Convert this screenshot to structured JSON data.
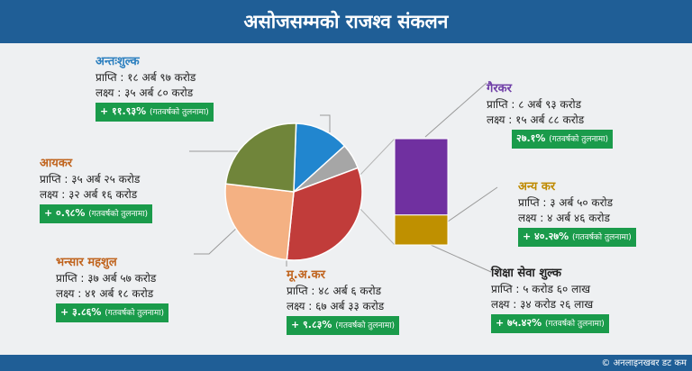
{
  "header": {
    "title": "असोजसम्मको राजश्व संकलन"
  },
  "footer": {
    "copyright": "© अनलाइनखबर डट कम"
  },
  "chart_data": {
    "type": "pie",
    "slices": [
      {
        "name": "अन्तःशुल्क",
        "value": 18.97,
        "color": "#2186cf"
      },
      {
        "name": "गैरकर",
        "value": 8.93,
        "color": "#a6a6a6"
      },
      {
        "name": "मू.अ.कर",
        "value": 48.06,
        "color": "#c13c3a"
      },
      {
        "name": "भन्सार महशुल",
        "value": 37.57,
        "color": "#f4b183"
      },
      {
        "name": "आयकर",
        "value": 35.25,
        "color": "#70853a"
      }
    ],
    "breakout": [
      {
        "name": "गैरकर",
        "value": 8.93,
        "color": "#7030a0"
      },
      {
        "name": "अन्य कर",
        "value": 3.5,
        "color": "#bf9000"
      }
    ]
  },
  "blocks": {
    "excise": {
      "title": "अन्तःशुल्क",
      "achievement": "प्राप्ति : १८ अर्ब ९७ करोड",
      "target": "लक्ष्य : ३५ अर्ब ८० करोड",
      "growth": "+ ११.९३%",
      "note": "(गतवर्षको तुलनामा)"
    },
    "income_tax": {
      "title": "आयकर",
      "achievement": "प्राप्ति : ३५ अर्ब २५ करोड",
      "target": "लक्ष्य : ३२ अर्ब १६ करोड",
      "growth": "+ ०.९८%",
      "note": "(गतवर्षको तुलनामा)"
    },
    "customs": {
      "title": "भन्सार महशुल",
      "achievement": "प्राप्ति : ३७ अर्ब ५७ करोड",
      "target": "लक्ष्य : ४१ अर्ब १८ करोड",
      "growth": "+ ३.८६%",
      "note": "(गतवर्षको तुलनामा)"
    },
    "vat": {
      "title": "मू.अ.कर",
      "achievement": "प्राप्ति : ४८ अर्ब ६ करोड",
      "target": "लक्ष्य : ६७ अर्ब ३३ करोड",
      "growth": "+ ९.८३%",
      "note": "(गतवर्षको तुलनामा)"
    },
    "non_tax": {
      "title": "गैरकर",
      "achievement": "प्राप्ति : ८ अर्ब ९३ करोड",
      "target": "लक्ष्य : १५ अर्ब ८८ करोड",
      "growth": "२७.१%",
      "note": "(गतवर्षको तुलनामा)"
    },
    "other_tax": {
      "title": "अन्य कर",
      "achievement": "प्राप्ति : ३ अर्ब ५० करोड",
      "target": "लक्ष्य : ४ अर्ब ४६ करोड",
      "growth": "+ ४०.२७%",
      "note": "(गतवर्षको तुलनामा)"
    },
    "education_fee": {
      "title": "शिक्षा सेवा शुल्क",
      "achievement": "प्राप्ति : ५ करोड ६० लाख",
      "target": "लक्ष्य : ३४ करोड २६ लाख",
      "growth": "+ ७५.४२%",
      "note": "(गतवर्षको तुलनामा)"
    }
  }
}
